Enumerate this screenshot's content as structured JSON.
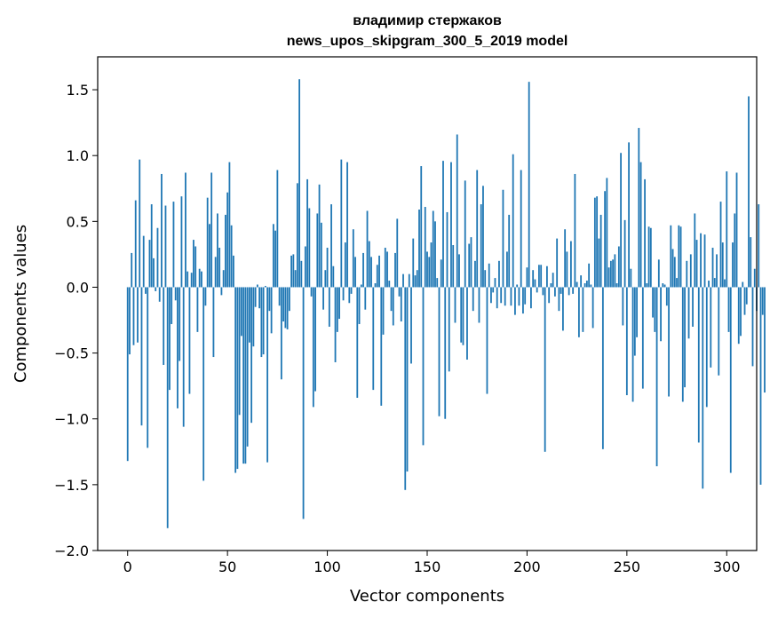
{
  "chart_data": {
    "type": "bar",
    "title": "владимир стержаков",
    "subtitle": "news_upos_skipgram_300_5_2019 model",
    "xlabel": "Vector components",
    "ylabel": "Components values",
    "xlim": [
      -15,
      315
    ],
    "ylim": [
      -2.0,
      1.75
    ],
    "xticks": [
      0,
      50,
      100,
      150,
      200,
      250,
      300
    ],
    "yticks": [
      -2.0,
      -1.5,
      -1.0,
      -0.5,
      0.0,
      0.5,
      1.0,
      1.5
    ],
    "ytick_labels": [
      "−2.0",
      "−1.5",
      "−1.0",
      "−0.5",
      "0.0",
      "0.5",
      "1.0",
      "1.5"
    ],
    "grid": false,
    "bar_color": "#1f77b4",
    "values": [
      -1.32,
      -0.51,
      0.26,
      -0.44,
      0.66,
      -0.42,
      0.97,
      -1.05,
      0.39,
      -0.05,
      -1.22,
      0.36,
      0.63,
      0.22,
      -0.03,
      0.45,
      -0.11,
      0.86,
      -0.59,
      0.62,
      -1.83,
      -0.78,
      -0.28,
      0.65,
      -0.1,
      -0.92,
      -0.56,
      0.69,
      -1.06,
      0.87,
      0.12,
      -0.81,
      0.11,
      0.36,
      0.31,
      -0.34,
      0.14,
      0.12,
      -1.47,
      -0.14,
      0.68,
      0.48,
      0.87,
      -0.53,
      0.23,
      0.56,
      0.3,
      -0.06,
      0.13,
      0.55,
      0.72,
      0.95,
      0.47,
      0.24,
      -1.41,
      -1.38,
      -0.97,
      -0.37,
      -1.34,
      -1.34,
      -1.21,
      -0.42,
      -1.03,
      -0.45,
      -0.15,
      0.02,
      -0.16,
      -0.53,
      -0.51,
      0.01,
      -1.33,
      -0.18,
      -0.35,
      0.48,
      0.43,
      0.89,
      -0.14,
      -0.7,
      -0.26,
      -0.31,
      -0.32,
      -0.18,
      0.24,
      0.25,
      0.13,
      0.79,
      1.58,
      0.2,
      -1.76,
      0.31,
      0.82,
      0.6,
      -0.07,
      -0.91,
      -0.79,
      0.56,
      0.78,
      0.49,
      -0.17,
      0.13,
      0.3,
      -0.3,
      0.63,
      0.16,
      -0.57,
      -0.34,
      -0.24,
      0.97,
      -0.1,
      0.34,
      0.95,
      -0.12,
      -0.05,
      0.44,
      0.23,
      -0.84,
      -0.28,
      0.02,
      0.26,
      -0.17,
      0.58,
      0.35,
      0.23,
      -0.78,
      0.03,
      0.17,
      0.24,
      -0.9,
      -0.36,
      0.3,
      0.27,
      0.05,
      -0.18,
      -0.29,
      0.26,
      0.52,
      -0.07,
      -0.26,
      0.1,
      -1.54,
      -1.4,
      0.1,
      -0.58,
      0.37,
      0.09,
      0.13,
      0.59,
      0.92,
      -1.2,
      0.61,
      0.27,
      0.23,
      0.34,
      0.58,
      0.5,
      0.07,
      -0.98,
      0.21,
      0.96,
      -1.0,
      0.57,
      -0.64,
      0.95,
      0.32,
      -0.27,
      1.16,
      0.25,
      -0.42,
      -0.44,
      0.81,
      -0.55,
      0.33,
      0.38,
      -0.18,
      0.2,
      0.89,
      -0.27,
      0.63,
      0.77,
      0.13,
      -0.81,
      0.18,
      -0.12,
      -0.04,
      0.07,
      -0.16,
      0.2,
      -0.12,
      0.74,
      -0.14,
      0.27,
      0.55,
      -0.14,
      1.01,
      -0.21,
      0.02,
      -0.14,
      0.89,
      -0.2,
      -0.13,
      0.15,
      1.56,
      -0.16,
      0.13,
      0.06,
      -0.04,
      0.17,
      0.17,
      -0.06,
      -1.25,
      0.16,
      -0.12,
      0.03,
      0.11,
      -0.07,
      0.37,
      -0.18,
      -0.05,
      -0.33,
      0.44,
      0.27,
      -0.06,
      0.35,
      -0.05,
      0.86,
      0.04,
      -0.38,
      0.09,
      -0.34,
      0.03,
      0.05,
      0.18,
      0.02,
      -0.31,
      0.68,
      0.69,
      0.37,
      0.55,
      -1.23,
      0.73,
      0.83,
      0.15,
      0.2,
      0.21,
      0.25,
      0.03,
      0.31,
      1.02,
      -0.29,
      0.51,
      -0.82,
      1.1,
      0.14,
      -0.87,
      -0.52,
      -0.38,
      1.21,
      0.95,
      -0.77,
      0.82,
      0.03,
      0.46,
      0.45,
      -0.23,
      -0.34,
      -1.36,
      0.21,
      -0.41,
      0.03,
      0.02,
      -0.14,
      -0.83,
      0.47,
      0.29,
      0.23,
      0.07,
      0.47,
      0.46,
      -0.87,
      -0.76,
      0.2,
      -0.39,
      0.25,
      -0.3,
      0.56,
      0.36,
      -1.18,
      0.41,
      -1.53,
      0.4,
      -0.91,
      0.05,
      -0.61,
      0.3,
      0.07,
      0.25,
      -0.67,
      0.65,
      0.34,
      0.06
    ],
    "extra_values": [
      0.88,
      -0.34,
      -1.41,
      0.34,
      0.56,
      0.87,
      -0.43,
      -0.37,
      0.04,
      -0.21,
      -0.13,
      1.45,
      0.38,
      -0.6,
      0.14,
      -0.18,
      0.63,
      -1.5,
      -0.21,
      -0.8
    ]
  }
}
